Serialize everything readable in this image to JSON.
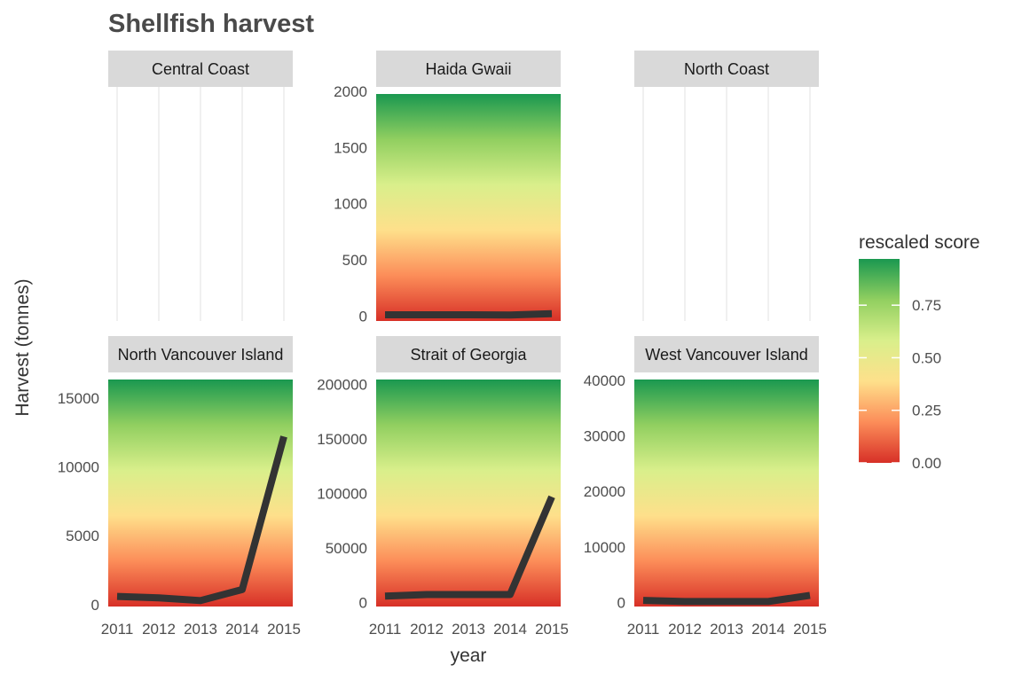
{
  "chart_data": {
    "type": "line",
    "title": "Shellfish harvest",
    "xlabel": "year",
    "ylabel": "Harvest (tonnes)",
    "x": [
      2011,
      2012,
      2013,
      2014,
      2015
    ],
    "x_tick_labels": [
      "2011",
      "2012",
      "2013",
      "2014",
      "2015"
    ],
    "legend": {
      "title": "rescaled score",
      "ticks": [
        "0.00",
        "0.25",
        "0.50",
        "0.75"
      ],
      "tick_values": [
        0,
        0.25,
        0.5,
        0.75
      ],
      "range": [
        0,
        0.97
      ],
      "colors": [
        "#d73027",
        "#fc8d59",
        "#fee08b",
        "#d9ef8b",
        "#91cf60",
        "#1a9850"
      ]
    },
    "panels": [
      {
        "name": "Central Coast",
        "has_data": false,
        "values": [],
        "ylim": null,
        "y_ticks": []
      },
      {
        "name": "Haida Gwaii",
        "has_data": true,
        "values": [
          10,
          10,
          10,
          8,
          20
        ],
        "ylim": [
          -45,
          2040
        ],
        "y_ticks": [
          0,
          500,
          1000,
          1500,
          2000
        ],
        "y_tick_labels": [
          "0",
          "500",
          "1000",
          "1500",
          "2000"
        ]
      },
      {
        "name": "North Coast",
        "has_data": false,
        "values": [],
        "ylim": null,
        "y_ticks": []
      },
      {
        "name": "North Vancouver Island",
        "has_data": true,
        "values": [
          600,
          500,
          300,
          1100,
          12200
        ],
        "ylim": [
          -130,
          16850
        ],
        "y_ticks": [
          0,
          5000,
          10000,
          15000
        ],
        "y_tick_labels": [
          "0",
          "5000",
          "10000",
          "15000"
        ]
      },
      {
        "name": "Strait of Georgia",
        "has_data": true,
        "values": [
          6000,
          7500,
          7500,
          7500,
          97000
        ],
        "ylim": [
          -3500,
          211000
        ],
        "y_ticks": [
          0,
          50000,
          100000,
          150000,
          200000
        ],
        "y_tick_labels": [
          "0",
          "50000",
          "100000",
          "150000",
          "200000"
        ]
      },
      {
        "name": "West Vancouver Island",
        "has_data": true,
        "values": [
          400,
          200,
          200,
          200,
          1300
        ],
        "ylim": [
          -700,
          41400
        ],
        "y_ticks": [
          0,
          10000,
          20000,
          30000,
          40000
        ],
        "y_tick_labels": [
          "0",
          "10000",
          "20000",
          "30000",
          "40000"
        ]
      }
    ]
  }
}
